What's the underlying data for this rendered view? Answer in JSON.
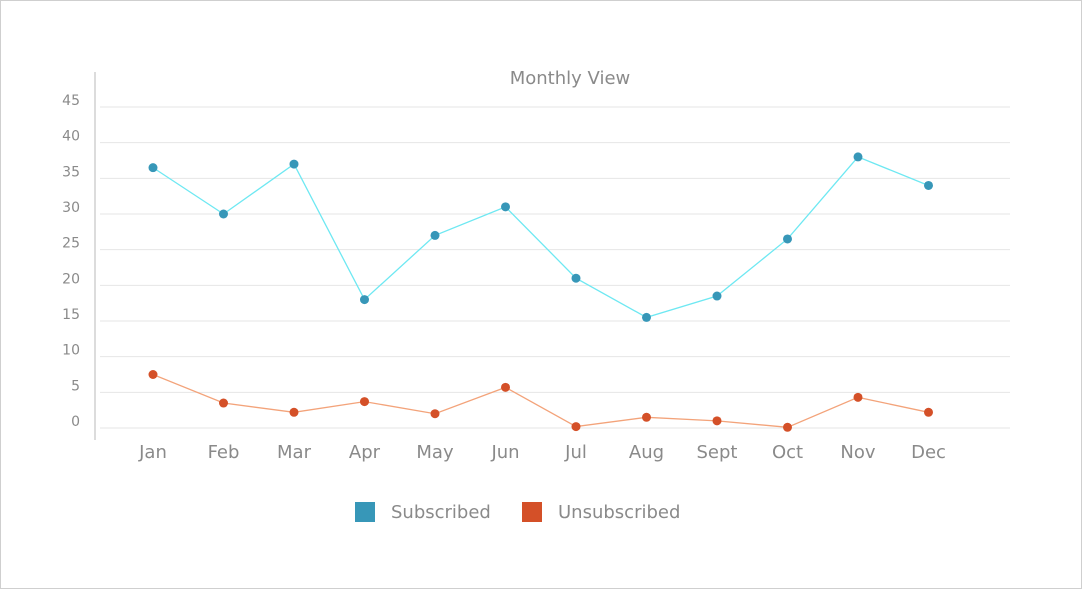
{
  "chart_data": {
    "type": "line",
    "title": "Monthly View",
    "xlabel": "",
    "ylabel": "",
    "categories": [
      "Jan",
      "Feb",
      "Mar",
      "Apr",
      "May",
      "Jun",
      "Jul",
      "Aug",
      "Sept",
      "Oct",
      "Nov",
      "Dec"
    ],
    "ylim": [
      0,
      45
    ],
    "yticks": [
      0,
      5,
      10,
      15,
      20,
      25,
      30,
      35,
      40,
      45
    ],
    "grid": true,
    "legend_position": "bottom",
    "series": [
      {
        "name": "Subscribed",
        "line_color": "#6ee8f2",
        "marker_color": "#3797b8",
        "values": [
          36.5,
          30,
          37,
          18,
          27,
          31,
          21,
          15.5,
          18.5,
          26.5,
          38,
          34
        ]
      },
      {
        "name": "Unsubscribed",
        "line_color": "#f3a37a",
        "marker_color": "#d45028",
        "values": [
          7.5,
          3.5,
          2.2,
          3.7,
          2,
          5.7,
          0.2,
          1.5,
          1,
          0.1,
          4.3,
          2.2
        ]
      }
    ]
  }
}
